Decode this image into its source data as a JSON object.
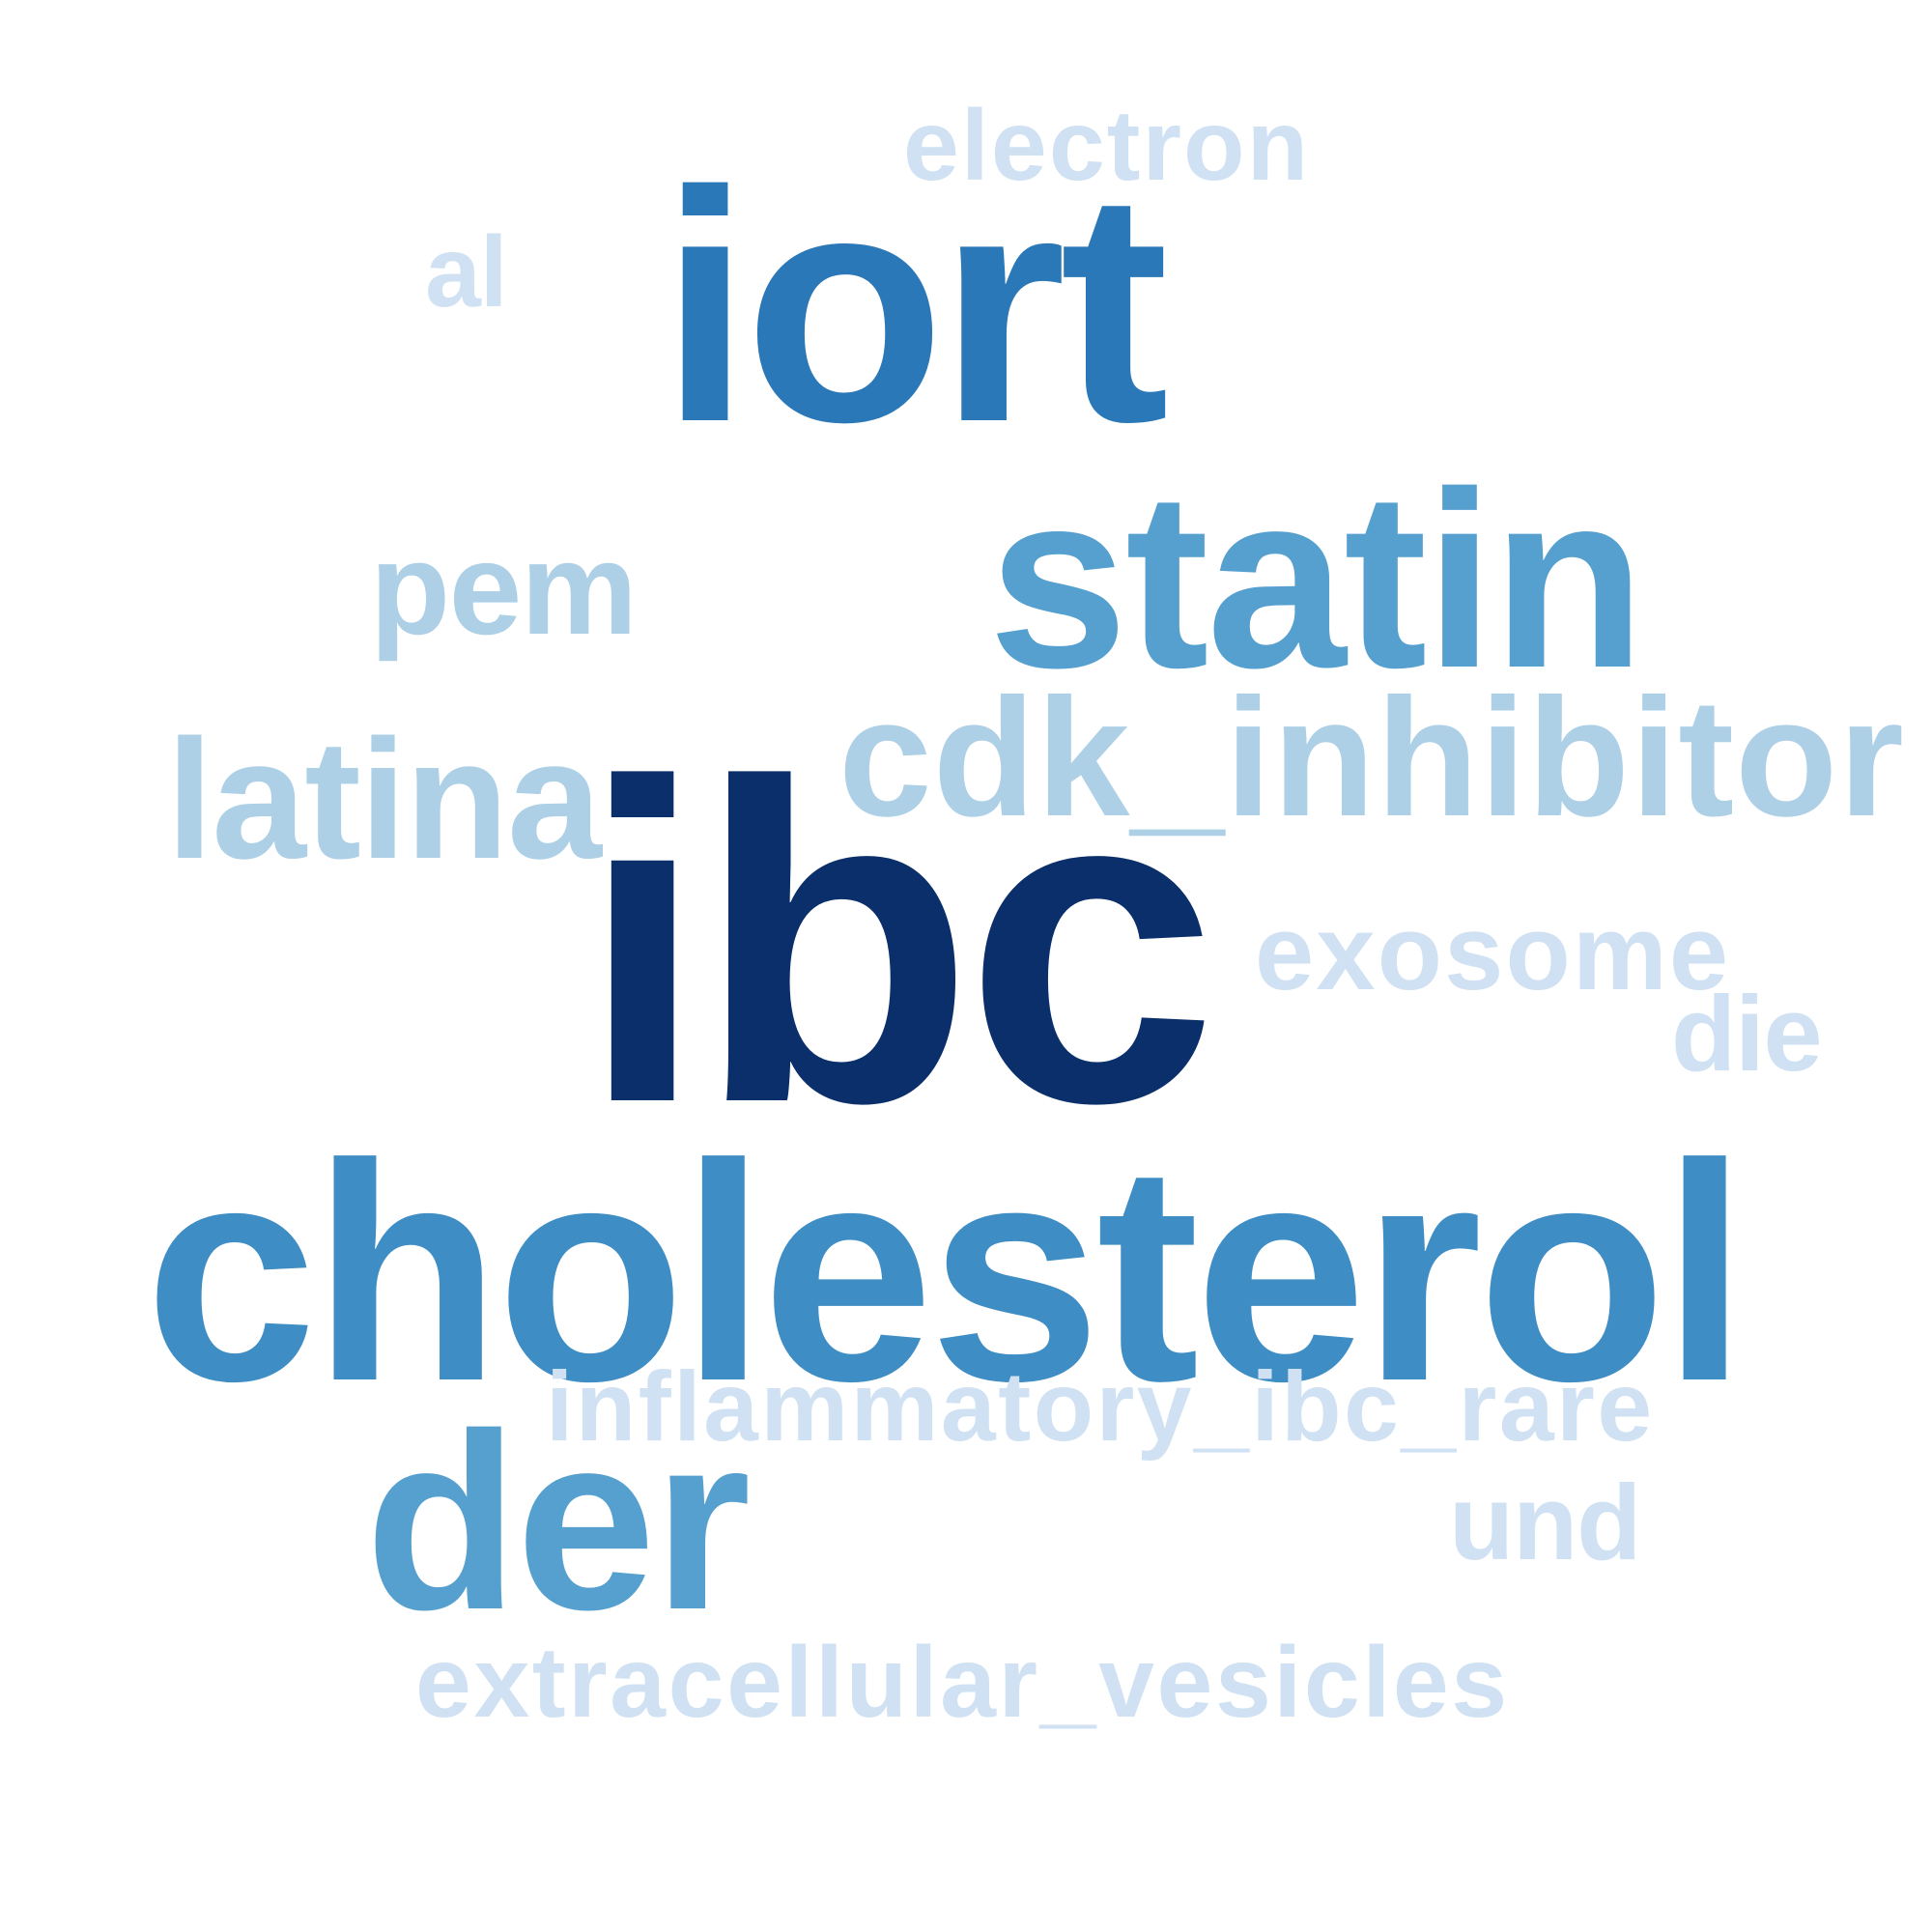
{
  "word_cloud": {
    "words": [
      {
        "text": "electron",
        "color": "#cfe1f2"
      },
      {
        "text": "al",
        "color": "#cfe1f2"
      },
      {
        "text": "iort",
        "color": "#2a78b8"
      },
      {
        "text": "pem",
        "color": "#aed0e6"
      },
      {
        "text": "statin",
        "color": "#56a0cf"
      },
      {
        "text": "latina",
        "color": "#aed0e6"
      },
      {
        "text": "cdk_inhibitor",
        "color": "#aed0e6"
      },
      {
        "text": "ibc",
        "color": "#0a2f6b"
      },
      {
        "text": "exosome",
        "color": "#cfe1f2"
      },
      {
        "text": "die",
        "color": "#cfe1f2"
      },
      {
        "text": "cholesterol",
        "color": "#3e8dc4"
      },
      {
        "text": "inflammatory_ibc_rare",
        "color": "#cfe1f2"
      },
      {
        "text": "und",
        "color": "#cfe1f2"
      },
      {
        "text": "der",
        "color": "#56a0cf"
      },
      {
        "text": "extracellular_vesicles",
        "color": "#cfe1f2"
      }
    ]
  }
}
